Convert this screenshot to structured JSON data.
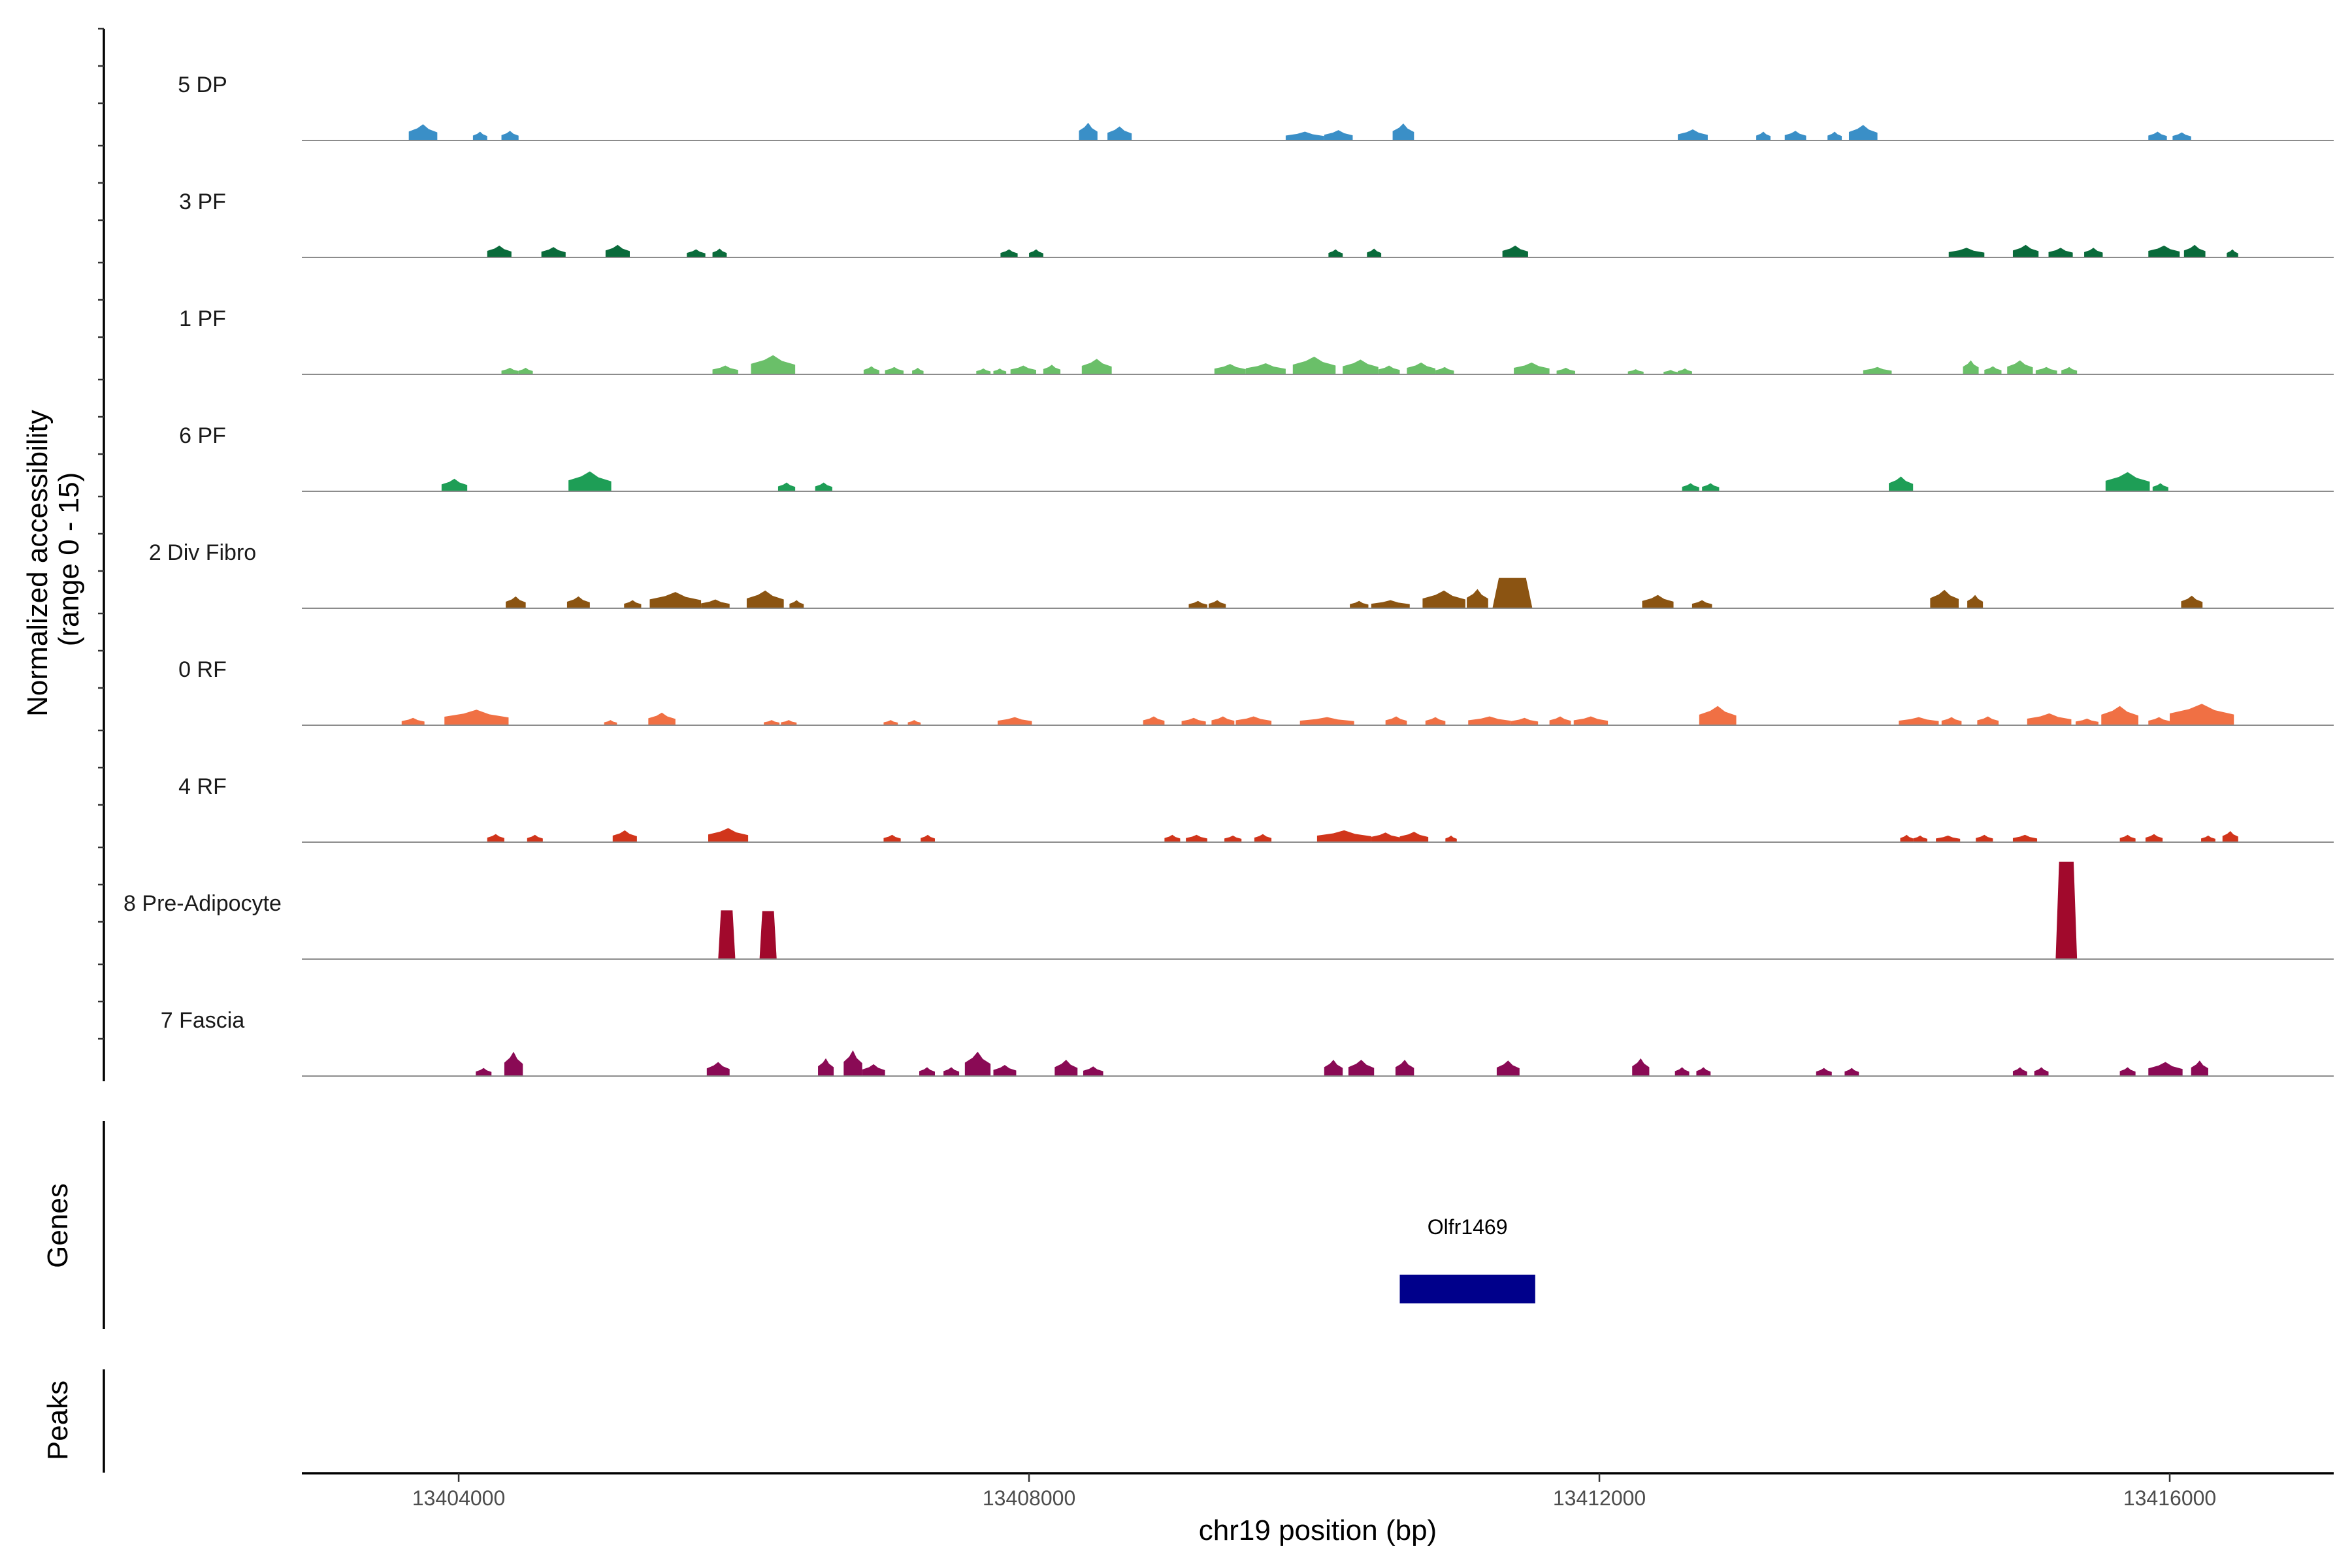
{
  "chart_data": {
    "type": "area",
    "ylabel": "Normalized accessibility\n(range 0 - 15)",
    "xlabel": "chr19 position (bp)",
    "xlim": [
      13402900,
      13417150
    ],
    "ylim": [
      0,
      15
    ],
    "x_ticks": [
      13404000,
      13408000,
      13412000,
      13416000
    ],
    "x_tick_labels": [
      "13404000",
      "13408000",
      "13412000",
      "13416000"
    ],
    "tracks": [
      {
        "name": "5 DP",
        "color": "#3a8fc7",
        "peaks": [
          [
            13403650,
            13403850,
            2.2
          ],
          [
            13404100,
            13404200,
            1.2
          ],
          [
            13404300,
            13404420,
            1.3
          ],
          [
            13408350,
            13408480,
            2.4
          ],
          [
            13408550,
            13408720,
            1.9
          ],
          [
            13409800,
            13410070,
            1.2
          ],
          [
            13410070,
            13410270,
            1.4
          ],
          [
            13410550,
            13410700,
            2.3
          ],
          [
            13412550,
            13412760,
            1.5
          ],
          [
            13413100,
            13413200,
            1.2
          ],
          [
            13413300,
            13413450,
            1.3
          ],
          [
            13413600,
            13413700,
            1.2
          ],
          [
            13413750,
            13413950,
            2.1
          ],
          [
            13415850,
            13415980,
            1.2
          ],
          [
            13416020,
            13416150,
            1.1
          ]
        ]
      },
      {
        "name": "3 PF",
        "color": "#0a6b3b",
        "peaks": [
          [
            13404200,
            13404370,
            1.6
          ],
          [
            13404580,
            13404750,
            1.4
          ],
          [
            13405030,
            13405200,
            1.7
          ],
          [
            13405600,
            13405730,
            1.1
          ],
          [
            13405780,
            13405880,
            1.2
          ],
          [
            13407800,
            13407920,
            1.1
          ],
          [
            13408000,
            13408100,
            1.1
          ],
          [
            13410100,
            13410200,
            1.1
          ],
          [
            13410370,
            13410470,
            1.2
          ],
          [
            13411320,
            13411500,
            1.6
          ],
          [
            13414450,
            13414700,
            1.3
          ],
          [
            13414900,
            13415080,
            1.7
          ],
          [
            13415150,
            13415320,
            1.3
          ],
          [
            13415400,
            13415530,
            1.3
          ],
          [
            13415850,
            13416070,
            1.6
          ],
          [
            13416100,
            13416250,
            1.7
          ],
          [
            13416400,
            13416480,
            1.1
          ]
        ]
      },
      {
        "name": "1 PF",
        "color": "#6abf69",
        "peaks": [
          [
            13404300,
            13404420,
            0.9
          ],
          [
            13404420,
            13404520,
            0.9
          ],
          [
            13405780,
            13405960,
            1.2
          ],
          [
            13406050,
            13406360,
            2.6
          ],
          [
            13406840,
            13406950,
            1.1
          ],
          [
            13406990,
            13407120,
            1.0
          ],
          [
            13407180,
            13407260,
            0.9
          ],
          [
            13407630,
            13407730,
            0.8
          ],
          [
            13407750,
            13407840,
            0.8
          ],
          [
            13407870,
            13408050,
            1.2
          ],
          [
            13408100,
            13408220,
            1.3
          ],
          [
            13408370,
            13408580,
            2.1
          ],
          [
            13409300,
            13409520,
            1.4
          ],
          [
            13409520,
            13409800,
            1.5
          ],
          [
            13409850,
            13410150,
            2.4
          ],
          [
            13410200,
            13410450,
            2.0
          ],
          [
            13410450,
            13410600,
            1.2
          ],
          [
            13410650,
            13410850,
            1.6
          ],
          [
            13410850,
            13410980,
            1.0
          ],
          [
            13411400,
            13411650,
            1.6
          ],
          [
            13411700,
            13411830,
            0.9
          ],
          [
            13412200,
            13412310,
            0.7
          ],
          [
            13412450,
            13412550,
            0.6
          ],
          [
            13412550,
            13412650,
            0.8
          ],
          [
            13413850,
            13414050,
            1.0
          ],
          [
            13414550,
            13414660,
            1.9
          ],
          [
            13414700,
            13414820,
            1.1
          ],
          [
            13414860,
            13415040,
            1.9
          ],
          [
            13415060,
            13415210,
            1.0
          ],
          [
            13415240,
            13415350,
            1.0
          ]
        ]
      },
      {
        "name": "6 PF",
        "color": "#1e9e56",
        "peaks": [
          [
            13403880,
            13404060,
            1.7
          ],
          [
            13404770,
            13405070,
            2.7
          ],
          [
            13406240,
            13406360,
            1.2
          ],
          [
            13406500,
            13406620,
            1.2
          ],
          [
            13412580,
            13412700,
            1.1
          ],
          [
            13412720,
            13412840,
            1.1
          ],
          [
            13414030,
            13414200,
            2.0
          ],
          [
            13415550,
            13415860,
            2.6
          ],
          [
            13415880,
            13415990,
            1.1
          ]
        ]
      },
      {
        "name": "2 Div Fibro",
        "color": "#8b5412",
        "peaks": [
          [
            13404330,
            13404470,
            1.6
          ],
          [
            13404760,
            13404920,
            1.6
          ],
          [
            13405160,
            13405280,
            1.1
          ],
          [
            13405340,
            13405700,
            2.2
          ],
          [
            13405700,
            13405900,
            1.2
          ],
          [
            13406020,
            13406280,
            2.4
          ],
          [
            13406320,
            13406420,
            1.1
          ],
          [
            13409120,
            13409250,
            1.0
          ],
          [
            13409260,
            13409380,
            1.1
          ],
          [
            13410250,
            13410380,
            1.0
          ],
          [
            13410400,
            13410670,
            1.1
          ],
          [
            13410760,
            13411060,
            2.4
          ],
          [
            13411070,
            13411220,
            2.6
          ],
          [
            13411250,
            13411530,
            4.1
          ],
          [
            13412300,
            13412520,
            1.8
          ],
          [
            13412650,
            13412790,
            1.1
          ],
          [
            13414320,
            13414520,
            2.5
          ],
          [
            13414580,
            13414690,
            1.8
          ],
          [
            13416080,
            13416230,
            1.7
          ]
        ]
      },
      {
        "name": "0 RF",
        "color": "#f07044",
        "peaks": [
          [
            13403600,
            13403760,
            1.0
          ],
          [
            13403900,
            13404350,
            2.1
          ],
          [
            13405020,
            13405110,
            0.7
          ],
          [
            13405330,
            13405520,
            1.7
          ],
          [
            13406140,
            13406250,
            0.7
          ],
          [
            13406260,
            13406370,
            0.7
          ],
          [
            13406980,
            13407080,
            0.7
          ],
          [
            13407150,
            13407240,
            0.7
          ],
          [
            13407780,
            13408020,
            1.1
          ],
          [
            13408800,
            13408950,
            1.2
          ],
          [
            13409070,
            13409240,
            1.0
          ],
          [
            13409280,
            13409440,
            1.2
          ],
          [
            13409450,
            13409700,
            1.2
          ],
          [
            13409900,
            13410280,
            1.1
          ],
          [
            13410500,
            13410650,
            1.2
          ],
          [
            13410780,
            13410920,
            1.1
          ],
          [
            13411080,
            13411380,
            1.2
          ],
          [
            13411380,
            13411570,
            1.0
          ],
          [
            13411650,
            13411800,
            1.2
          ],
          [
            13411820,
            13412060,
            1.2
          ],
          [
            13412700,
            13412960,
            2.6
          ],
          [
            13414100,
            13414380,
            1.1
          ],
          [
            13414400,
            13414540,
            1.1
          ],
          [
            13414650,
            13414800,
            1.2
          ],
          [
            13415000,
            13415310,
            1.6
          ],
          [
            13415340,
            13415500,
            0.9
          ],
          [
            13415520,
            13415780,
            2.6
          ],
          [
            13415850,
            13416000,
            1.1
          ],
          [
            13416000,
            13416450,
            2.9
          ]
        ]
      },
      {
        "name": "4 RF",
        "color": "#d1351b",
        "peaks": [
          [
            13404200,
            13404320,
            1.1
          ],
          [
            13404480,
            13404590,
            1.0
          ],
          [
            13405080,
            13405250,
            1.6
          ],
          [
            13405750,
            13406030,
            1.9
          ],
          [
            13406980,
            13407100,
            1.0
          ],
          [
            13407240,
            13407340,
            1.0
          ],
          [
            13408950,
            13409060,
            1.0
          ],
          [
            13409100,
            13409250,
            1.0
          ],
          [
            13409370,
            13409490,
            0.9
          ],
          [
            13409580,
            13409700,
            1.1
          ],
          [
            13410020,
            13410400,
            1.6
          ],
          [
            13410400,
            13410600,
            1.3
          ],
          [
            13410600,
            13410800,
            1.4
          ],
          [
            13410920,
            13411000,
            0.9
          ],
          [
            13414110,
            13414200,
            1.0
          ],
          [
            13414200,
            13414300,
            0.9
          ],
          [
            13414360,
            13414530,
            0.9
          ],
          [
            13414640,
            13414760,
            1.0
          ],
          [
            13414900,
            13415070,
            1.0
          ],
          [
            13415650,
            13415760,
            1.0
          ],
          [
            13415830,
            13415950,
            1.1
          ],
          [
            13416220,
            13416320,
            0.9
          ],
          [
            13416370,
            13416480,
            1.5
          ]
        ]
      },
      {
        "name": "8 Pre-Adipocyte",
        "color": "#a1092c",
        "peaks": [
          [
            13405820,
            13405940,
            6.6
          ],
          [
            13406110,
            13406230,
            6.5
          ],
          [
            13415200,
            13415350,
            13.2
          ]
        ]
      },
      {
        "name": "7 Fascia",
        "color": "#8a0a55",
        "peaks": [
          [
            13404120,
            13404230,
            1.1
          ],
          [
            13404320,
            13404450,
            3.3
          ],
          [
            13405740,
            13405900,
            1.9
          ],
          [
            13406520,
            13406630,
            2.4
          ],
          [
            13406700,
            13406830,
            3.5
          ],
          [
            13406830,
            13406990,
            1.6
          ],
          [
            13407230,
            13407340,
            1.2
          ],
          [
            13407400,
            13407510,
            1.2
          ],
          [
            13407550,
            13407730,
            3.3
          ],
          [
            13407750,
            13407910,
            1.5
          ],
          [
            13408180,
            13408340,
            2.2
          ],
          [
            13408380,
            13408520,
            1.3
          ],
          [
            13410070,
            13410200,
            2.2
          ],
          [
            13410240,
            13410420,
            2.2
          ],
          [
            13410570,
            13410700,
            2.2
          ],
          [
            13411280,
            13411440,
            2.1
          ],
          [
            13412230,
            13412350,
            2.4
          ],
          [
            13412530,
            13412630,
            1.2
          ],
          [
            13412680,
            13412780,
            1.2
          ],
          [
            13413520,
            13413630,
            1.1
          ],
          [
            13413720,
            13413820,
            1.1
          ],
          [
            13414900,
            13415000,
            1.2
          ],
          [
            13415050,
            13415150,
            1.2
          ],
          [
            13415650,
            13415760,
            1.2
          ],
          [
            13415850,
            13416090,
            1.9
          ],
          [
            13416150,
            13416270,
            2.1
          ]
        ]
      }
    ],
    "genes": [
      {
        "name": "Olfr1469",
        "start": 13410600,
        "end": 13411550,
        "color": "#00008b"
      }
    ],
    "panel_labels": {
      "genes": "Genes",
      "peaks": "Peaks"
    },
    "baseline_color": "#8c8c8c",
    "grid": false
  }
}
